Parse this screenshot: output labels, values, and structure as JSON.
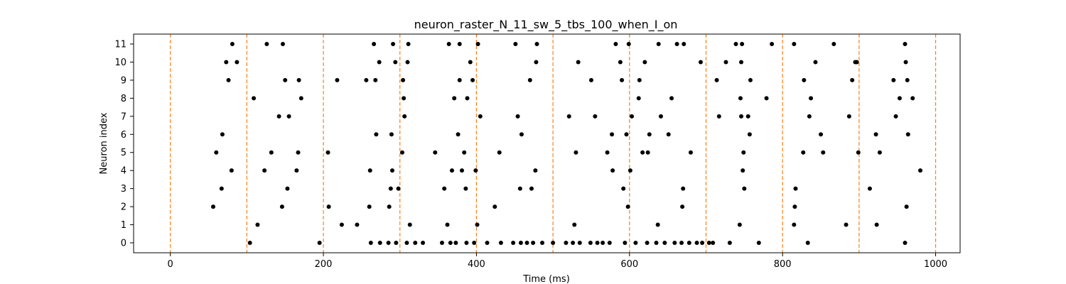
{
  "chart_data": {
    "type": "scatter",
    "title": "neuron_raster_N_11_sw_5_tbs_100_when_I_on",
    "xlabel": "Time (ms)",
    "ylabel": "Neuron index",
    "xlim": [
      -48,
      1032
    ],
    "ylim": [
      -0.55,
      11.55
    ],
    "x_ticks": [
      0,
      200,
      400,
      600,
      800,
      1000
    ],
    "y_ticks": [
      0,
      1,
      2,
      3,
      4,
      5,
      6,
      7,
      8,
      9,
      10,
      11
    ],
    "grid": false,
    "marker_color": "#000000",
    "vlines": {
      "x": [
        0,
        100,
        200,
        300,
        400,
        500,
        600,
        700,
        800,
        900,
        1000
      ],
      "color": "#ff7f0e",
      "style": "dashed"
    },
    "series": [
      {
        "points": [
          [
            56,
            2
          ],
          [
            60,
            5
          ],
          [
            67,
            3
          ],
          [
            68,
            6
          ],
          [
            73,
            10
          ],
          [
            76,
            9
          ],
          [
            80,
            4
          ],
          [
            81,
            11
          ],
          [
            87,
            10
          ],
          [
            104,
            0
          ],
          [
            109,
            8
          ],
          [
            114,
            1
          ],
          [
            123,
            4
          ],
          [
            126,
            11
          ],
          [
            132,
            5
          ],
          [
            142,
            7
          ],
          [
            146,
            2
          ],
          [
            147,
            11
          ],
          [
            150,
            9
          ],
          [
            153,
            3
          ],
          [
            155,
            7
          ],
          [
            165,
            4
          ],
          [
            167,
            5
          ],
          [
            168,
            9
          ],
          [
            171,
            8
          ],
          [
            195,
            0
          ],
          [
            206,
            5
          ],
          [
            207,
            2
          ],
          [
            218,
            9
          ],
          [
            224,
            1
          ],
          [
            244,
            1
          ],
          [
            256,
            9
          ],
          [
            260,
            2
          ],
          [
            261,
            4
          ],
          [
            262,
            0
          ],
          [
            266,
            11
          ],
          [
            268,
            9
          ],
          [
            269,
            6
          ],
          [
            273,
            10
          ],
          [
            274,
            0
          ],
          [
            285,
            0
          ],
          [
            286,
            2
          ],
          [
            288,
            3
          ],
          [
            289,
            6
          ],
          [
            290,
            4
          ],
          [
            291,
            11
          ],
          [
            294,
            10
          ],
          [
            295,
            0
          ],
          [
            298,
            3
          ],
          [
            303,
            5
          ],
          [
            304,
            9
          ],
          [
            305,
            8
          ],
          [
            306,
            7
          ],
          [
            309,
            0
          ],
          [
            310,
            10
          ],
          [
            311,
            11
          ],
          [
            313,
            1
          ],
          [
            320,
            0
          ],
          [
            330,
            0
          ],
          [
            346,
            5
          ],
          [
            355,
            0
          ],
          [
            358,
            3
          ],
          [
            362,
            1
          ],
          [
            364,
            11
          ],
          [
            366,
            0
          ],
          [
            368,
            4
          ],
          [
            371,
            8
          ],
          [
            373,
            0
          ],
          [
            376,
            6
          ],
          [
            378,
            11
          ],
          [
            378,
            9
          ],
          [
            381,
            4
          ],
          [
            384,
            5
          ],
          [
            386,
            3
          ],
          [
            387,
            0
          ],
          [
            388,
            8
          ],
          [
            392,
            10
          ],
          [
            395,
            9
          ],
          [
            397,
            0
          ],
          [
            399,
            4
          ],
          [
            401,
            1
          ],
          [
            402,
            11
          ],
          [
            405,
            7
          ],
          [
            414,
            0
          ],
          [
            424,
            2
          ],
          [
            430,
            5
          ],
          [
            432,
            0
          ],
          [
            448,
            0
          ],
          [
            451,
            11
          ],
          [
            454,
            7
          ],
          [
            457,
            3
          ],
          [
            458,
            0
          ],
          [
            459,
            6
          ],
          [
            466,
            0
          ],
          [
            470,
            9
          ],
          [
            472,
            3
          ],
          [
            474,
            0
          ],
          [
            477,
            4
          ],
          [
            478,
            10
          ],
          [
            479,
            11
          ],
          [
            486,
            0
          ],
          [
            500,
            0
          ],
          [
            517,
            0
          ],
          [
            521,
            7
          ],
          [
            526,
            0
          ],
          [
            528,
            1
          ],
          [
            530,
            5
          ],
          [
            533,
            10
          ],
          [
            535,
            0
          ],
          [
            549,
            0
          ],
          [
            550,
            9
          ],
          [
            555,
            7
          ],
          [
            558,
            0
          ],
          [
            565,
            0
          ],
          [
            571,
            5
          ],
          [
            574,
            0
          ],
          [
            577,
            6
          ],
          [
            578,
            4
          ],
          [
            582,
            11
          ],
          [
            588,
            10
          ],
          [
            590,
            9
          ],
          [
            592,
            3
          ],
          [
            594,
            0
          ],
          [
            596,
            6
          ],
          [
            598,
            2
          ],
          [
            599,
            11
          ],
          [
            601,
            4
          ],
          [
            603,
            7
          ],
          [
            608,
            0
          ],
          [
            612,
            8
          ],
          [
            613,
            9
          ],
          [
            617,
            5
          ],
          [
            620,
            10
          ],
          [
            623,
            0
          ],
          [
            624,
            5
          ],
          [
            626,
            6
          ],
          [
            635,
            0
          ],
          [
            637,
            1
          ],
          [
            638,
            11
          ],
          [
            641,
            7
          ],
          [
            646,
            0
          ],
          [
            651,
            6
          ],
          [
            655,
            8
          ],
          [
            659,
            0
          ],
          [
            662,
            11
          ],
          [
            668,
            0
          ],
          [
            669,
            2
          ],
          [
            670,
            3
          ],
          [
            671,
            11
          ],
          [
            678,
            0
          ],
          [
            680,
            5
          ],
          [
            688,
            0
          ],
          [
            693,
            10
          ],
          [
            695,
            0
          ],
          [
            704,
            0
          ],
          [
            709,
            0
          ],
          [
            714,
            9
          ],
          [
            717,
            7
          ],
          [
            726,
            10
          ],
          [
            731,
            0
          ],
          [
            739,
            11
          ],
          [
            744,
            1
          ],
          [
            745,
            8
          ],
          [
            746,
            7
          ],
          [
            746,
            10
          ],
          [
            747,
            11
          ],
          [
            748,
            4
          ],
          [
            749,
            5
          ],
          [
            750,
            3
          ],
          [
            755,
            7
          ],
          [
            757,
            6
          ],
          [
            758,
            9
          ],
          [
            769,
            0
          ],
          [
            779,
            8
          ],
          [
            786,
            11
          ],
          [
            815,
            1
          ],
          [
            815,
            11
          ],
          [
            816,
            2
          ],
          [
            817,
            3
          ],
          [
            827,
            5
          ],
          [
            828,
            9
          ],
          [
            833,
            0
          ],
          [
            835,
            7
          ],
          [
            837,
            8
          ],
          [
            843,
            10
          ],
          [
            850,
            6
          ],
          [
            853,
            5
          ],
          [
            867,
            11
          ],
          [
            883,
            1
          ],
          [
            887,
            7
          ],
          [
            891,
            9
          ],
          [
            895,
            10
          ],
          [
            897,
            10
          ],
          [
            899,
            5
          ],
          [
            914,
            3
          ],
          [
            922,
            6
          ],
          [
            923,
            1
          ],
          [
            927,
            5
          ],
          [
            945,
            9
          ],
          [
            948,
            7
          ],
          [
            953,
            8
          ],
          [
            960,
            0
          ],
          [
            960,
            11
          ],
          [
            961,
            10
          ],
          [
            962,
            2
          ],
          [
            963,
            9
          ],
          [
            964,
            6
          ],
          [
            970,
            8
          ],
          [
            980,
            4
          ]
        ]
      }
    ]
  }
}
